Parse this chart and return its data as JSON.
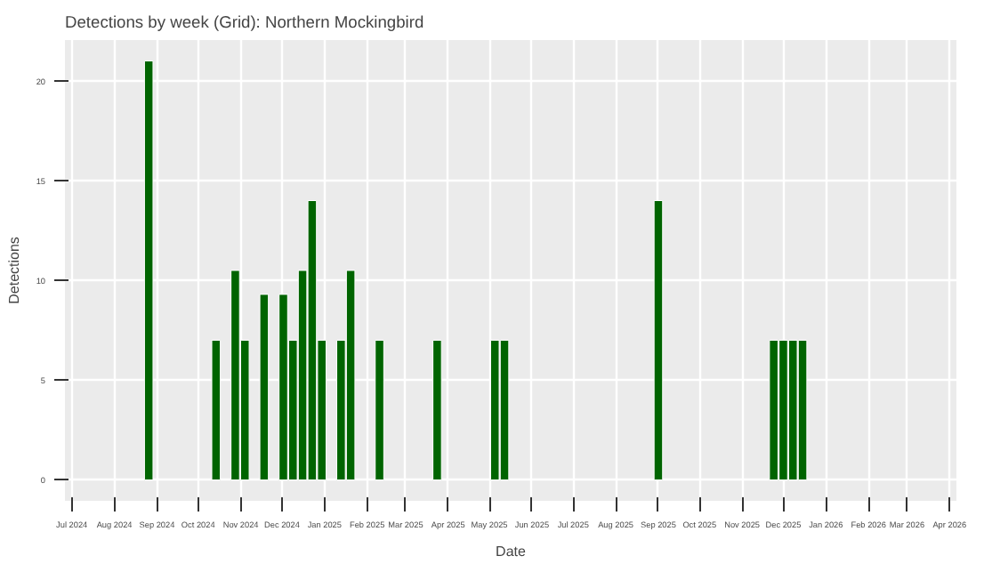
{
  "chart_data": {
    "type": "bar",
    "title": "Detections by week (Grid): Northern Mockingbird",
    "xlabel": "Date",
    "ylabel": "Detections",
    "x": [
      "2024-08-26",
      "2024-10-14",
      "2024-10-28",
      "2024-11-04",
      "2024-11-18",
      "2024-12-02",
      "2024-12-09",
      "2024-12-16",
      "2024-12-23",
      "2024-12-30",
      "2025-01-13",
      "2025-01-20",
      "2025-02-10",
      "2025-03-24",
      "2025-05-05",
      "2025-05-12",
      "2025-09-01",
      "2025-11-24",
      "2025-12-01",
      "2025-12-08",
      "2025-12-15"
    ],
    "values": [
      21,
      7,
      10.5,
      7,
      9.3,
      9.3,
      7,
      10.5,
      14,
      7,
      7,
      10.5,
      7,
      7,
      7,
      7,
      14,
      7,
      7,
      7,
      7
    ],
    "color": "#006400",
    "xlim": [
      "2024-06-26",
      "2026-04-06"
    ],
    "xticks": [
      {
        "value": "2024-07",
        "label": "Jul 2024"
      },
      {
        "value": "2024-08",
        "label": "Aug 2024"
      },
      {
        "value": "2024-09",
        "label": "Sep 2024"
      },
      {
        "value": "2024-10",
        "label": "Oct 2024"
      },
      {
        "value": "2024-11",
        "label": "Nov 2024"
      },
      {
        "value": "2024-12",
        "label": "Dec 2024"
      },
      {
        "value": "2025-01",
        "label": "Jan 2025"
      },
      {
        "value": "2025-02",
        "label": "Feb 2025"
      },
      {
        "value": "2025-03",
        "label": "Mar 2025"
      },
      {
        "value": "2025-04",
        "label": "Apr 2025"
      },
      {
        "value": "2025-05",
        "label": "May 2025"
      },
      {
        "value": "2025-06",
        "label": "Jun 2025"
      },
      {
        "value": "2025-07",
        "label": "Jul 2025"
      },
      {
        "value": "2025-08",
        "label": "Aug 2025"
      },
      {
        "value": "2025-09",
        "label": "Sep 2025"
      },
      {
        "value": "2025-10",
        "label": "Oct 2025"
      },
      {
        "value": "2025-11",
        "label": "Nov 2025"
      },
      {
        "value": "2025-12",
        "label": "Dec 2025"
      },
      {
        "value": "2026-01",
        "label": "Jan 2026"
      },
      {
        "value": "2026-02",
        "label": "Feb 2026"
      },
      {
        "value": "2026-03",
        "label": "Mar 2026"
      },
      {
        "value": "2026-04",
        "label": "Apr 2026"
      }
    ],
    "ylim": [
      -1.05,
      22.05
    ],
    "yticks": [
      0,
      5,
      10,
      15,
      20
    ],
    "grid": true
  }
}
